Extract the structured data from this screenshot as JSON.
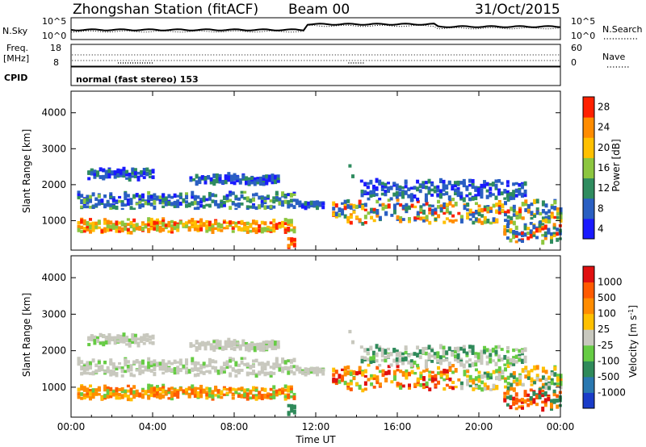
{
  "header": {
    "title": "Zhongshan Station (fitACF)",
    "beam": "Beam 00",
    "date": "31/Oct/2015"
  },
  "strip": {
    "nsky_label": "N.Sky",
    "nsky_ticks": [
      "10^5",
      "10^0"
    ],
    "nsearch_label": "N.Search",
    "nsearch_ticks": [
      "10^5",
      "10^0"
    ],
    "freq_label": "Freq.",
    "freq_unit": "[MHz]",
    "freq_ticks": [
      "18",
      "8"
    ],
    "nave_label": "Nave",
    "nave_ticks": [
      "60",
      "0"
    ],
    "cpid_label": "CPID",
    "cpid_text": "normal (fast stereo) 153"
  },
  "chart_data": [
    {
      "type": "heatmap",
      "name": "power-panel",
      "ylabel": "Slant Range [km]",
      "y_ticks": [
        "4000",
        "3000",
        "2000",
        "1000"
      ],
      "ylim": [
        180,
        4600
      ],
      "x_ticks": [
        "00:00",
        "04:00",
        "08:00",
        "12:00",
        "16:00",
        "20:00",
        "00:00"
      ],
      "xlim_hours": [
        0,
        24
      ],
      "colorbar_label": "Power [dB]",
      "colorbar_ticks": [
        "28",
        "24",
        "20",
        "16",
        "12",
        "8",
        "4"
      ],
      "colorbar_range": [
        0,
        30
      ],
      "colorbar_colors": [
        "#1a1aff",
        "#2a5fc2",
        "#2f8c5f",
        "#8cc63f",
        "#ffc000",
        "#ff8c00",
        "#ff2000"
      ]
    },
    {
      "type": "heatmap",
      "name": "velocity-panel",
      "ylabel": "Slant Range [km]",
      "y_ticks": [
        "4000",
        "3000",
        "2000",
        "1000"
      ],
      "ylim": [
        180,
        4600
      ],
      "x_ticks": [
        "00:00",
        "04:00",
        "08:00",
        "12:00",
        "16:00",
        "20:00",
        "00:00"
      ],
      "xlim_hours": [
        0,
        24
      ],
      "xlabel": "Time UT",
      "colorbar_label": "Velocity [m s",
      "colorbar_label_sup": "-1",
      "colorbar_label_end": "]",
      "colorbar_ticks": [
        "1000",
        "500",
        "100",
        "25",
        "-25",
        "-100",
        "-500",
        "-1000"
      ],
      "colorbar_colors": [
        "#1a3cc8",
        "#2a78b0",
        "#2f8a5a",
        "#66cc44",
        "#c8c8be",
        "#ffc000",
        "#ff8c00",
        "#ff5a00",
        "#e01010"
      ]
    }
  ]
}
